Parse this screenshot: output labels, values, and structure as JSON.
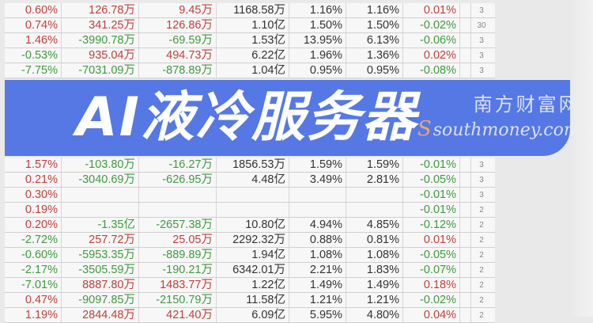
{
  "title": "AI液冷服务器",
  "watermark": {
    "cn": "南方财富网",
    "en": "southmoney.com"
  },
  "colors": {
    "up": "#c0403c",
    "down": "#3f9a3f",
    "overlay": "#4068e4"
  },
  "rows": [
    {
      "cells": [
        "0.60%",
        "126.78万",
        "9.45万",
        "1168.58万",
        "1.16%",
        "1.16%",
        "0.01%"
      ],
      "colors": [
        "red",
        "red",
        "red",
        "dark",
        "dark",
        "dark",
        "red"
      ],
      "side": "3"
    },
    {
      "cells": [
        "0.74%",
        "341.25万",
        "126.86万",
        "1.10亿",
        "1.50%",
        "1.50%",
        "-0.02%"
      ],
      "colors": [
        "red",
        "red",
        "red",
        "dark",
        "dark",
        "dark",
        "green"
      ],
      "side": "30"
    },
    {
      "cells": [
        "1.46%",
        "-3990.78万",
        "-69.59万",
        "1.53亿",
        "13.95%",
        "6.13%",
        "-0.06%"
      ],
      "colors": [
        "red",
        "green",
        "green",
        "dark",
        "dark",
        "dark",
        "green"
      ],
      "side": "3"
    },
    {
      "cells": [
        "-0.53%",
        "935.04万",
        "494.73万",
        "6.22亿",
        "1.96%",
        "1.36%",
        "0.02%"
      ],
      "colors": [
        "green",
        "red",
        "red",
        "dark",
        "dark",
        "dark",
        "red"
      ],
      "side": "3"
    },
    {
      "cells": [
        "-7.75%",
        "-7031.09万",
        "-878.89万",
        "1.04亿",
        "0.95%",
        "0.95%",
        "-0.08%"
      ],
      "colors": [
        "green",
        "green",
        "green",
        "dark",
        "dark",
        "dark",
        "green"
      ],
      "side": "3"
    },
    {
      "cells": [
        "1.57%",
        "-103.80万",
        "-16.27万",
        "1856.53万",
        "1.59%",
        "1.59%",
        "-0.01%"
      ],
      "colors": [
        "red",
        "green",
        "green",
        "dark",
        "dark",
        "dark",
        "green"
      ],
      "side": "3"
    },
    {
      "cells": [
        "0.21%",
        "-3040.69万",
        "-626.95万",
        "4.48亿",
        "3.49%",
        "2.81%",
        "-0.05%"
      ],
      "colors": [
        "red",
        "green",
        "green",
        "dark",
        "dark",
        "dark",
        "green"
      ],
      "side": "3"
    },
    {
      "cells": [
        "0.30%",
        "",
        "",
        "",
        "",
        "",
        "-0.01%"
      ],
      "colors": [
        "red",
        "green",
        "green",
        "dark",
        "dark",
        "dark",
        "green"
      ],
      "side": "3"
    },
    {
      "cells": [
        "0.19%",
        "",
        "",
        "",
        "",
        "",
        "-0.01%"
      ],
      "colors": [
        "red",
        "green",
        "green",
        "dark",
        "dark",
        "dark",
        "green"
      ],
      "side": "2"
    },
    {
      "cells": [
        "0.20%",
        "-1.35亿",
        "-2657.38万",
        "10.80亿",
        "4.94%",
        "4.85%",
        "-0.12%"
      ],
      "colors": [
        "red",
        "green",
        "green",
        "dark",
        "dark",
        "dark",
        "green"
      ],
      "side": "2"
    },
    {
      "cells": [
        "-2.72%",
        "257.72万",
        "25.05万",
        "2292.32万",
        "0.88%",
        "0.81%",
        "0.01%"
      ],
      "colors": [
        "green",
        "red",
        "red",
        "dark",
        "dark",
        "dark",
        "red"
      ],
      "side": "2"
    },
    {
      "cells": [
        "-0.60%",
        "-5953.35万",
        "-889.89万",
        "1.94亿",
        "1.08%",
        "1.08%",
        "-0.05%"
      ],
      "colors": [
        "green",
        "green",
        "green",
        "dark",
        "dark",
        "dark",
        "green"
      ],
      "side": "2"
    },
    {
      "cells": [
        "-2.17%",
        "-3505.59万",
        "-190.21万",
        "6342.01万",
        "2.21%",
        "1.83%",
        "-0.07%"
      ],
      "colors": [
        "green",
        "green",
        "green",
        "dark",
        "dark",
        "dark",
        "green"
      ],
      "side": "2"
    },
    {
      "cells": [
        "-7.01%",
        "8887.80万",
        "1483.77万",
        "1.22亿",
        "1.49%",
        "1.49%",
        "0.18%"
      ],
      "colors": [
        "green",
        "red",
        "red",
        "dark",
        "dark",
        "dark",
        "red"
      ],
      "side": "2"
    },
    {
      "cells": [
        "0.47%",
        "-9097.85万",
        "-2150.79万",
        "11.58亿",
        "1.21%",
        "1.21%",
        "-0.02%"
      ],
      "colors": [
        "red",
        "green",
        "green",
        "dark",
        "dark",
        "dark",
        "green"
      ],
      "side": "2"
    },
    {
      "cells": [
        "1.19%",
        "2844.48万",
        "421.40万",
        "6.09亿",
        "5.95%",
        "4.80%",
        "0.04%"
      ],
      "colors": [
        "red",
        "red",
        "red",
        "dark",
        "dark",
        "dark",
        "red"
      ],
      "side": "2"
    }
  ]
}
